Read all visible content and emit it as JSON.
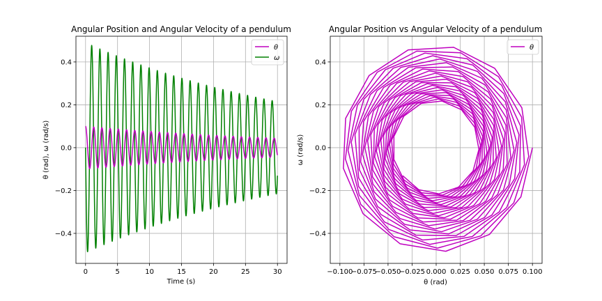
{
  "colors": {
    "theta": "#bf00bf",
    "omega": "#008000",
    "grid": "#b0b0b0",
    "axes": "#000000"
  },
  "chart_data": [
    {
      "type": "line",
      "title": "Angular Position and Angular Velocity of a pendulum",
      "xlabel": "Time (s)",
      "ylabel": "θ (rad), ω (rad/s)",
      "xlim": [
        -1.5,
        31.5
      ],
      "ylim": [
        -0.54,
        0.52
      ],
      "xticks": [
        0,
        5,
        10,
        15,
        20,
        25,
        30
      ],
      "yticks": [
        -0.4,
        -0.2,
        0.0,
        0.2,
        0.4
      ],
      "xtick_labels": [
        "0",
        "5",
        "10",
        "15",
        "20",
        "25",
        "30"
      ],
      "ytick_labels": [
        "−0.4",
        "−0.2",
        "0.0",
        "0.2",
        "0.4"
      ],
      "grid": true,
      "legend_position": "top-right",
      "series": [
        {
          "name": "θ",
          "color": "#bf00bf",
          "model": {
            "amplitude": 0.1,
            "decay_rate": 0.0275,
            "angular_frequency": 4.9,
            "t_start": 0,
            "t_end": 30,
            "phase": "cos"
          }
        },
        {
          "name": "ω",
          "color": "#008000",
          "model": {
            "amplitude": 0.49,
            "decay_rate": 0.0275,
            "angular_frequency": 4.9,
            "t_start": 0,
            "t_end": 30,
            "phase": "-sin"
          }
        }
      ]
    },
    {
      "type": "line",
      "title": "Angular Position vs Angular Velocity of a pendulum",
      "xlabel": "θ (rad)",
      "ylabel": "ω (rad/s)",
      "xlim": [
        -0.11,
        0.11
      ],
      "ylim": [
        -0.54,
        0.52
      ],
      "xticks": [
        -0.1,
        -0.075,
        -0.05,
        -0.025,
        0.0,
        0.025,
        0.05,
        0.075,
        0.1
      ],
      "yticks": [
        -0.4,
        -0.2,
        0.0,
        0.2,
        0.4
      ],
      "xtick_labels": [
        "−0.100",
        "−0.075",
        "−0.050",
        "−0.025",
        "0.000",
        "0.025",
        "0.050",
        "0.075",
        "0.100"
      ],
      "ytick_labels": [
        "−0.4",
        "−0.2",
        "0.0",
        "0.2",
        "0.4"
      ],
      "grid": true,
      "legend_position": "top-right",
      "series": [
        {
          "name": "θ",
          "color": "#bf00bf",
          "model": {
            "theta_amplitude": 0.1,
            "omega_amplitude": 0.49,
            "decay_rate": 0.0275,
            "angular_frequency": 4.9,
            "t_start": 0,
            "t_end": 30,
            "phase": "spiral"
          }
        }
      ]
    }
  ]
}
